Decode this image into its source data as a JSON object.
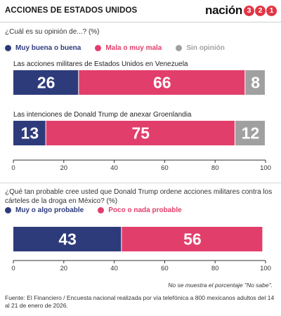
{
  "header": {
    "title": "ACCIONES DE ESTADOS UNIDOS",
    "brand": "nación",
    "brand_digits": [
      "3",
      "2",
      "1"
    ]
  },
  "colors": {
    "positive": "#2e3b7b",
    "negative": "#e23e6b",
    "neutral": "#a0a0a0",
    "brand_red": "#e23645"
  },
  "panel1": {
    "question": "¿Cuál es su opinión de...? (%)",
    "legend": [
      {
        "label": "Muy buena o buena",
        "color": "#2e3b7b"
      },
      {
        "label": "Mala o muy mala",
        "color": "#e23e6b"
      },
      {
        "label": "Sin opinión",
        "color": "#a0a0a0"
      }
    ]
  },
  "panel2": {
    "question": "¿Qué tan probable cree usted que Donald Trump ordene acciones militares contra los cárteles de la droga en México? (%)",
    "legend": [
      {
        "label": "Muy o algo probable",
        "color": "#2e3b7b"
      },
      {
        "label": "Poco o nada probable",
        "color": "#e23e6b"
      }
    ]
  },
  "chart_data": [
    {
      "type": "bar",
      "orientation": "horizontal",
      "stacked": true,
      "categories": [
        "Las acciones militares de Estados Unidos en Venezuela",
        "Las intenciones de Donald Trump de anexar Groenlandia"
      ],
      "series": [
        {
          "name": "Muy buena o buena",
          "values": [
            26,
            13
          ]
        },
        {
          "name": "Mala o muy mala",
          "values": [
            66,
            75
          ]
        },
        {
          "name": "Sin opinión",
          "values": [
            8,
            12
          ]
        }
      ],
      "xlim": [
        0,
        100
      ],
      "xticks": [
        0,
        20,
        40,
        60,
        80,
        100
      ],
      "grid": false
    },
    {
      "type": "bar",
      "orientation": "horizontal",
      "stacked": true,
      "categories": [
        ""
      ],
      "series": [
        {
          "name": "Muy o algo probable",
          "values": [
            43
          ]
        },
        {
          "name": "Poco o nada probable",
          "values": [
            56
          ]
        }
      ],
      "xlim": [
        0,
        100
      ],
      "xticks": [
        0,
        20,
        40,
        60,
        80,
        100
      ],
      "grid": false
    }
  ],
  "footnote": "No se muestra el porcentaje \"No sabe\".",
  "source": "Fuente: El Financiero / Encuesta nacional realizada por vía telefónica a 800 mexicanos adultos del 14 al 21 de enero de 2026."
}
